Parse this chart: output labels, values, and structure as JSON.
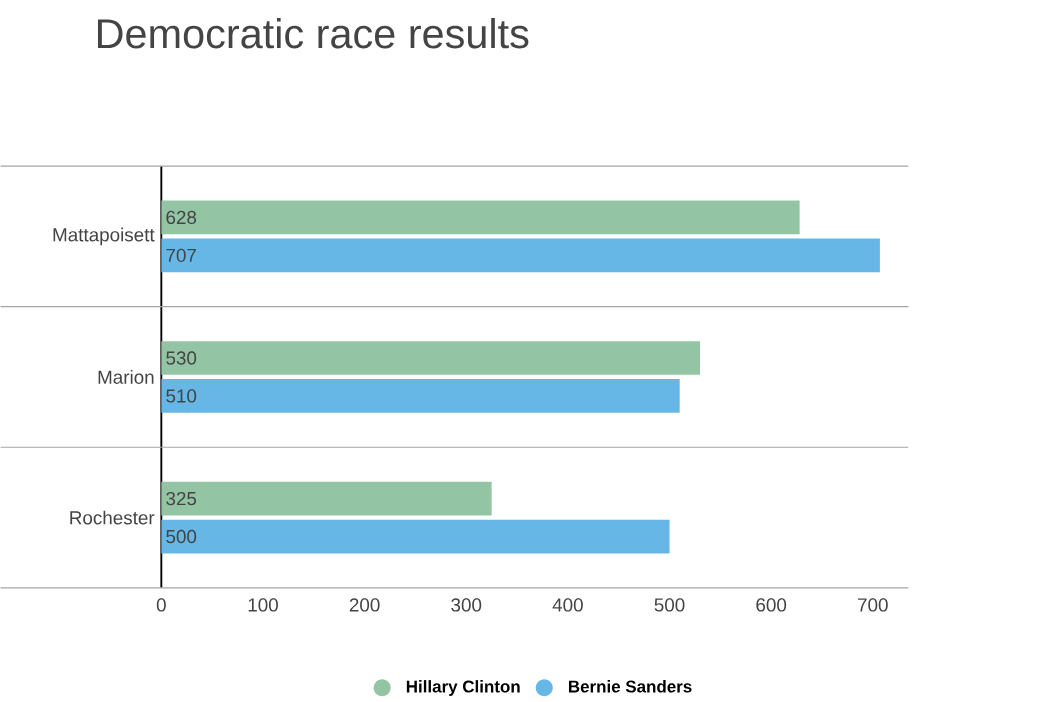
{
  "chart_data": {
    "type": "bar",
    "orientation": "horizontal",
    "title": "Democratic race results",
    "categories": [
      "Mattapoisett",
      "Marion",
      "Rochester"
    ],
    "series": [
      {
        "name": "Hillary Clinton",
        "color": "#93c5a4",
        "values": [
          628,
          530,
          325
        ]
      },
      {
        "name": "Bernie Sanders",
        "color": "#66b6e6",
        "values": [
          707,
          510,
          500
        ]
      }
    ],
    "xlim": [
      0,
      735
    ],
    "xticks": [
      0,
      100,
      200,
      300,
      400,
      500,
      600,
      700
    ],
    "data_labels": true,
    "legend": "bottom",
    "marker": "circle"
  }
}
